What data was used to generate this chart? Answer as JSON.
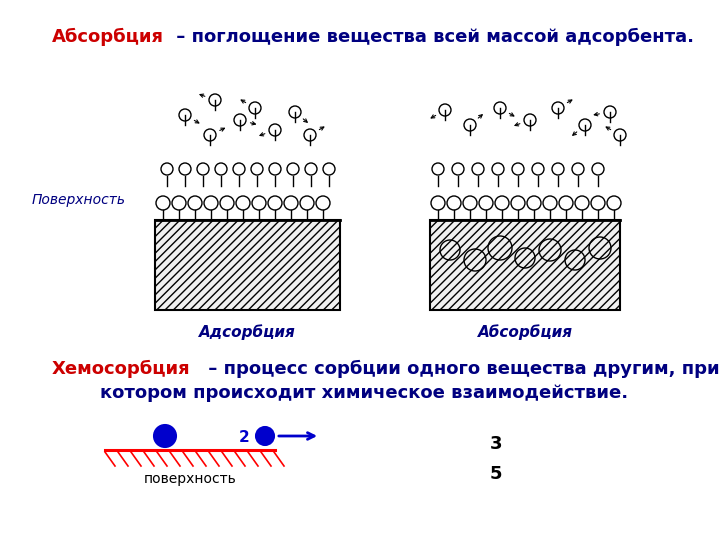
{
  "title_red": "Абсорбция",
  "title_blue": " – поглощение вещества всей массой адсорбента.",
  "subtitle_red": "Хемосорбция",
  "subtitle_blue_1": " – процесс сорбции одного вещества другим, при",
  "subtitle_blue_2": "котором происходит химическое взаимодействие.",
  "label_surface": "Поверхность",
  "label_adsorption": "Адсорбция",
  "label_absorption": "Абсорбция",
  "label_surface_bottom": "поверхность",
  "num3": "3",
  "num5": "5",
  "num2": "2",
  "red_color": "#cc0000",
  "blue_color": "#0000cc",
  "dark_blue": "#000080",
  "bg_color": "#ffffff"
}
